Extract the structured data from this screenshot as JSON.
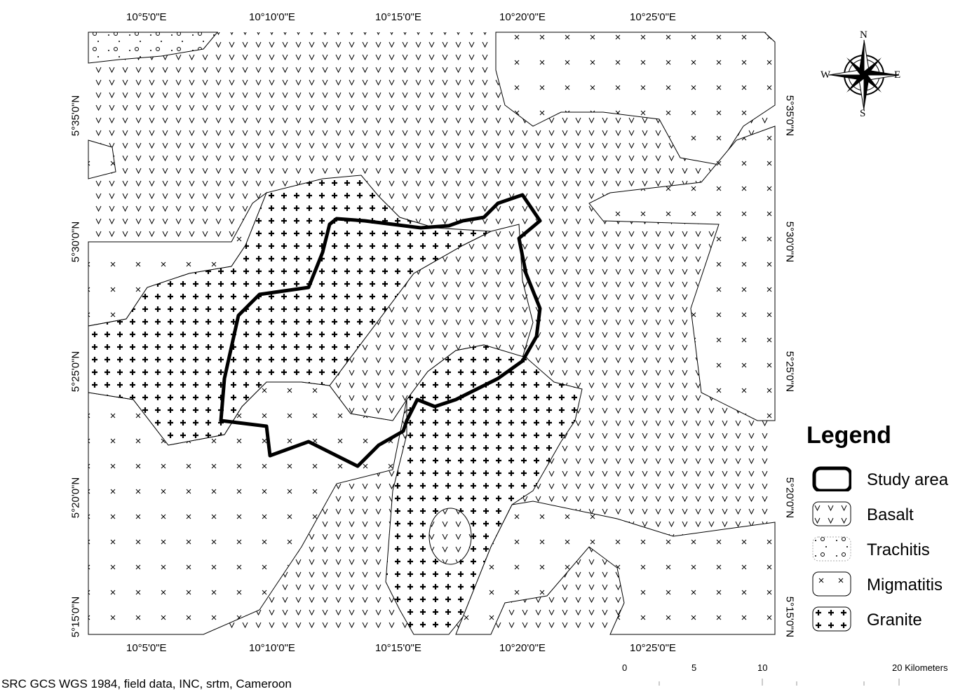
{
  "axes": {
    "top_labels": [
      "10°5'0\"E",
      "10°10'0\"E",
      "10°15'0\"E",
      "10°20'0\"E",
      "10°25'0\"E"
    ],
    "bottom_labels": [
      "10°5'0\"E",
      "10°10'0\"E",
      "10°15'0\"E",
      "10°20'0\"E",
      "10°25'0\"E"
    ],
    "left_labels": [
      "5°35'0\"N",
      "5°30'0\"N",
      "5°25'0\"N",
      "5°20'0\"N",
      "5°15'0\"N"
    ],
    "right_labels": [
      "5°35'0\"N",
      "5°30'0\"N",
      "5°25'0\"N",
      "5°20'0\"N",
      "5°15'0\"N"
    ]
  },
  "compass": {
    "icon": "north-arrow-compass-rose-icon",
    "n": "N",
    "s": "S",
    "e": "E",
    "w": "W"
  },
  "legend": {
    "title": "Legend",
    "items": [
      {
        "label": "Study area",
        "pattern": "thick-outline"
      },
      {
        "label": "Basalt",
        "pattern": "v-marks"
      },
      {
        "label": "Trachitis",
        "pattern": "dots"
      },
      {
        "label": "Migmatitis",
        "pattern": "x-marks"
      },
      {
        "label": "Granite",
        "pattern": "plus-marks"
      }
    ]
  },
  "scale_bar": {
    "labels": [
      "0",
      "5",
      "10",
      "20 Kilometers"
    ]
  },
  "source": "SRC GCS WGS 1984, field data, INC, srtm, Cameroon"
}
